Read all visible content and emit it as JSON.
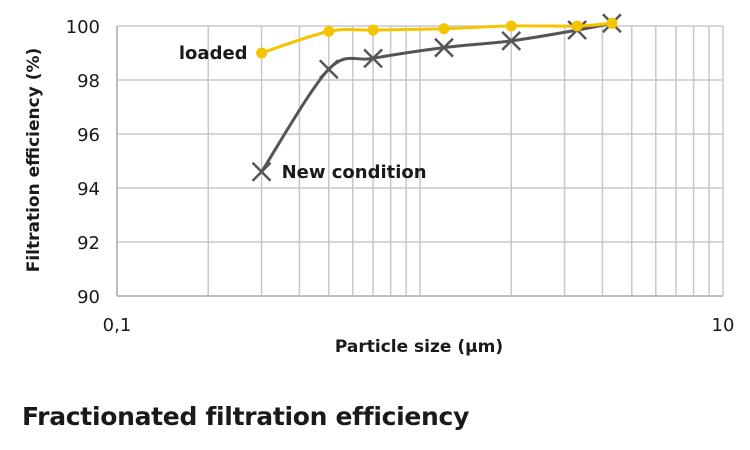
{
  "caption": "Fractionated filtration efficiency",
  "chart_data": {
    "type": "line",
    "title": "",
    "xlabel": "Particle size (µm)",
    "ylabel": "Filtration efficiency (%)",
    "xscale": "log",
    "xlim": [
      0.1,
      10
    ],
    "ylim": [
      90,
      100
    ],
    "xticks": [
      0.1,
      10
    ],
    "xtick_labels": [
      "0,1",
      "10"
    ],
    "yticks": [
      90,
      92,
      94,
      96,
      98,
      100
    ],
    "ytick_labels": [
      "90",
      "92",
      "94",
      "96",
      "98",
      "100"
    ],
    "grid": true,
    "series": [
      {
        "name": "loaded",
        "color": "#f5c400",
        "marker": "circle",
        "x": [
          0.3,
          0.5,
          0.7,
          1.2,
          2.0,
          3.3,
          4.3
        ],
        "y": [
          99.0,
          99.8,
          99.85,
          99.9,
          100.0,
          100.0,
          100.1
        ]
      },
      {
        "name": "New condition",
        "color": "#555555",
        "marker": "x",
        "x": [
          0.3,
          0.5,
          0.7,
          1.2,
          2.0,
          3.3,
          4.3
        ],
        "y": [
          94.6,
          98.4,
          98.8,
          99.2,
          99.45,
          99.85,
          100.1
        ]
      }
    ]
  }
}
